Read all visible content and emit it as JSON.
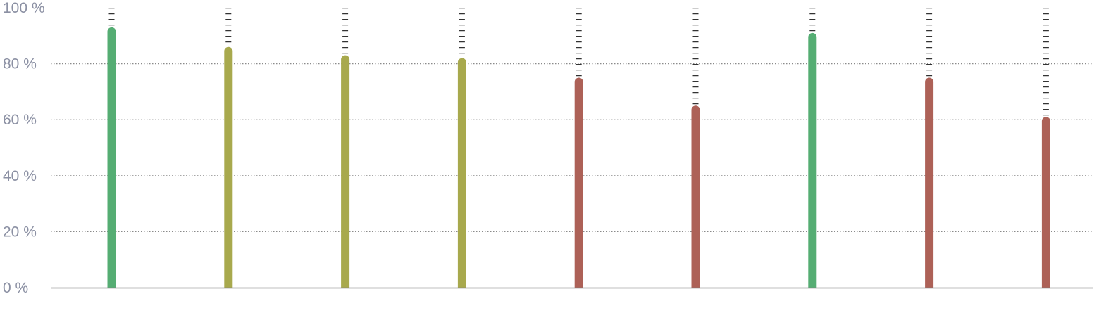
{
  "chart_data": {
    "type": "bar",
    "categories": [
      "",
      "",
      "",
      "",
      "",
      "",
      "",
      "",
      ""
    ],
    "values": [
      93,
      86,
      83,
      82,
      75,
      65,
      91,
      75,
      61
    ],
    "bar_colors": [
      "#55ad73",
      "#a8a94d",
      "#a8a94d",
      "#a8a94d",
      "#ad6157",
      "#ad6157",
      "#55ad73",
      "#ad6157",
      "#ad6157"
    ],
    "ylim": [
      0,
      100
    ],
    "y_ticks": [
      {
        "value": 0,
        "label": "0 %"
      },
      {
        "value": 20,
        "label": "20 %"
      },
      {
        "value": 40,
        "label": "40 %"
      },
      {
        "value": 60,
        "label": "60 %"
      },
      {
        "value": 80,
        "label": "80 %"
      },
      {
        "value": 100,
        "label": "100 %"
      }
    ],
    "grid": true,
    "grid_style": "dotted",
    "remainder_style": "dashed",
    "colors": {
      "green": "#55ad73",
      "olive": "#a8a94d",
      "red": "#ad6157",
      "grid": "#8a8a8a",
      "axis": "#808080",
      "remainder": "#333333",
      "tick_text": "#8b90a3"
    }
  }
}
